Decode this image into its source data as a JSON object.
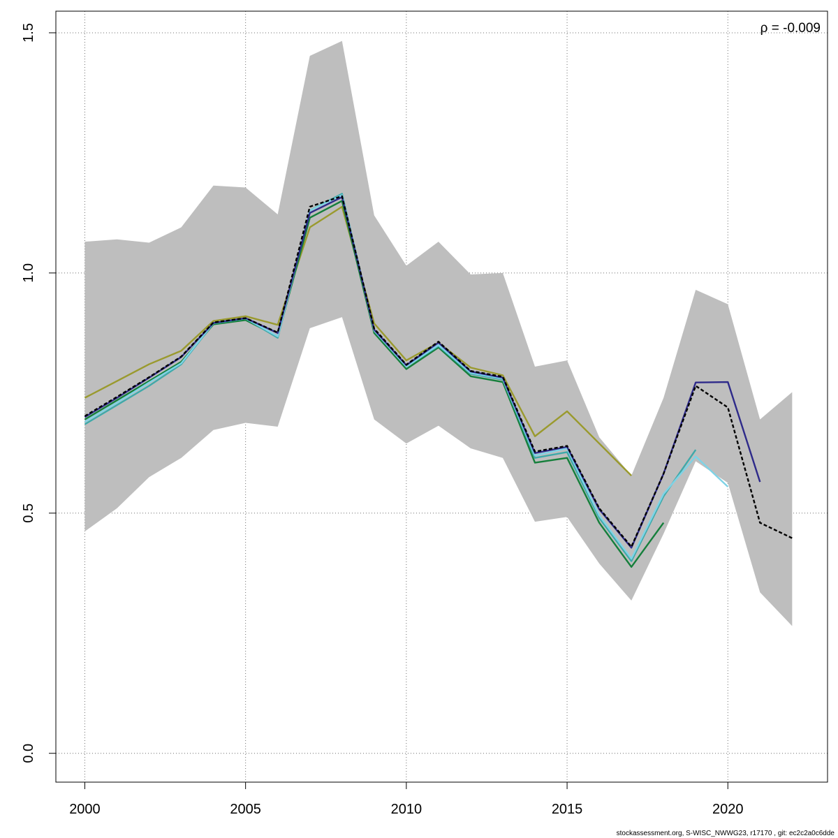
{
  "chart_data": {
    "type": "line",
    "title": "",
    "xlabel": "",
    "ylabel": "",
    "xlim": [
      1999.1,
      2023.1
    ],
    "ylim": [
      -0.06,
      1.545
    ],
    "x_ticks": [
      2000,
      2005,
      2010,
      2015,
      2020
    ],
    "y_ticks": [
      0.0,
      0.5,
      1.0,
      1.5
    ],
    "x_tick_labels": [
      "2000",
      "2005",
      "2010",
      "2015",
      "2020"
    ],
    "y_tick_labels": [
      "0.0",
      "0.5",
      "1.0",
      "1.5"
    ],
    "grid": true,
    "annotation": "ρ = -0.009",
    "footer": "stockassessment.org, S-WISC_NWWG23, r17170 , git: ec2c2a0c6dde",
    "colors": {
      "band": "#bebebe",
      "grid": "#6e6e6e"
    },
    "confidence_band": {
      "x": [
        2000,
        2001,
        2002,
        2003,
        2004,
        2005,
        2006,
        2007,
        2008,
        2009,
        2010,
        2011,
        2012,
        2013,
        2014,
        2015,
        2016,
        2017,
        2018,
        2019,
        2020,
        2021,
        2022
      ],
      "upper": [
        1.065,
        1.07,
        1.063,
        1.095,
        1.182,
        1.178,
        1.122,
        1.452,
        1.483,
        1.12,
        1.015,
        1.065,
        0.997,
        1.0,
        0.805,
        0.818,
        0.658,
        0.578,
        0.74,
        0.965,
        0.935,
        0.695,
        0.752
      ],
      "lower": [
        0.462,
        0.51,
        0.575,
        0.615,
        0.673,
        0.688,
        0.68,
        0.885,
        0.908,
        0.695,
        0.645,
        0.682,
        0.635,
        0.615,
        0.482,
        0.492,
        0.395,
        0.318,
        0.457,
        0.608,
        0.563,
        0.335,
        0.265
      ]
    },
    "series": [
      {
        "color": "#9a9a2e",
        "x": [
          2000,
          2001,
          2002,
          2003,
          2004,
          2005,
          2006,
          2007,
          2008,
          2009,
          2010,
          2011,
          2012,
          2013,
          2014,
          2015,
          2016,
          2017
        ],
        "values": [
          0.74,
          0.775,
          0.81,
          0.838,
          0.9,
          0.91,
          0.892,
          1.095,
          1.138,
          0.895,
          0.818,
          0.855,
          0.803,
          0.787,
          0.66,
          0.712,
          0.645,
          0.578
        ]
      },
      {
        "color": "#157f3b",
        "x": [
          2000,
          2001,
          2002,
          2003,
          2004,
          2005,
          2006,
          2007,
          2008,
          2009,
          2010,
          2011,
          2012,
          2013,
          2014,
          2015,
          2016,
          2017,
          2018
        ],
        "values": [
          0.695,
          0.735,
          0.775,
          0.815,
          0.893,
          0.902,
          0.868,
          1.115,
          1.15,
          0.875,
          0.8,
          0.845,
          0.785,
          0.773,
          0.605,
          0.615,
          0.48,
          0.388,
          0.48
        ]
      },
      {
        "color": "#3fa9a9",
        "x": [
          2000,
          2001,
          2002,
          2003,
          2004,
          2005,
          2006,
          2007,
          2008,
          2009,
          2010,
          2011,
          2012,
          2013,
          2014,
          2015,
          2016,
          2017,
          2018,
          2019
        ],
        "values": [
          0.685,
          0.725,
          0.765,
          0.81,
          0.895,
          0.905,
          0.865,
          1.13,
          1.165,
          0.88,
          0.805,
          0.848,
          0.79,
          0.778,
          0.615,
          0.627,
          0.49,
          0.4,
          0.535,
          0.632
        ]
      },
      {
        "color": "#7fd3e6",
        "x": [
          2000,
          2001,
          2002,
          2003,
          2004,
          2005,
          2006,
          2007,
          2008,
          2009,
          2010,
          2011,
          2012,
          2013,
          2014,
          2015,
          2016,
          2017,
          2018,
          2019,
          2020
        ],
        "values": [
          0.69,
          0.73,
          0.772,
          0.812,
          0.896,
          0.906,
          0.868,
          1.13,
          1.162,
          0.88,
          0.805,
          0.85,
          0.792,
          0.78,
          0.62,
          0.635,
          0.495,
          0.405,
          0.54,
          0.618,
          0.555
        ]
      },
      {
        "color": "#2e2a8a",
        "x": [
          2000,
          2001,
          2002,
          2003,
          2004,
          2005,
          2006,
          2007,
          2008,
          2009,
          2010,
          2011,
          2012,
          2013,
          2014,
          2015,
          2016,
          2017,
          2018,
          2019,
          2020,
          2021
        ],
        "values": [
          0.7,
          0.74,
          0.782,
          0.825,
          0.896,
          0.906,
          0.875,
          1.125,
          1.158,
          0.882,
          0.808,
          0.855,
          0.795,
          0.782,
          0.625,
          0.638,
          0.508,
          0.428,
          0.582,
          0.772,
          0.773,
          0.565
        ]
      },
      {
        "color": "#000000",
        "dashed": true,
        "x": [
          2000,
          2001,
          2002,
          2003,
          2004,
          2005,
          2006,
          2007,
          2008,
          2009,
          2010,
          2011,
          2012,
          2013,
          2014,
          2015,
          2016,
          2017,
          2018,
          2019,
          2020,
          2021,
          2022
        ],
        "values": [
          0.702,
          0.742,
          0.783,
          0.826,
          0.897,
          0.906,
          0.876,
          1.138,
          1.16,
          0.884,
          0.809,
          0.857,
          0.796,
          0.784,
          0.628,
          0.64,
          0.51,
          0.43,
          0.582,
          0.765,
          0.72,
          0.48,
          0.448
        ]
      }
    ]
  }
}
